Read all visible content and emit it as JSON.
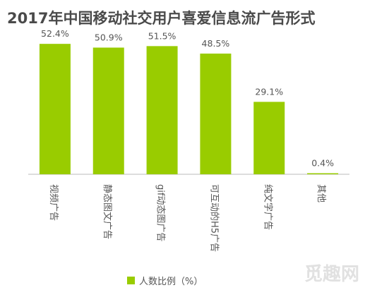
{
  "title": "2017年中国移动社交用户喜爱信息流广告形式",
  "legend": {
    "label": "人数比例（%）"
  },
  "watermark": "觅趣网",
  "colors": {
    "bar": "#99cc00",
    "axis": "#bbbbbb",
    "label": "#555555"
  },
  "chart_data": {
    "type": "bar",
    "title": "2017年中国移动社交用户喜爱信息流广告形式",
    "categories": [
      "视频广告",
      "静态图文广告",
      "gif动态图广告",
      "可互动的H5广告",
      "纯文字广告",
      "其他"
    ],
    "series": [
      {
        "name": "人数比例（%）",
        "values": [
          52.4,
          50.9,
          51.5,
          48.5,
          29.1,
          0.4
        ]
      }
    ],
    "value_labels": [
      "52.4%",
      "50.9%",
      "51.5%",
      "48.5%",
      "29.1%",
      "0.4%"
    ],
    "ylim": [
      0,
      55
    ],
    "grid": false,
    "legend_position": "bottom"
  }
}
